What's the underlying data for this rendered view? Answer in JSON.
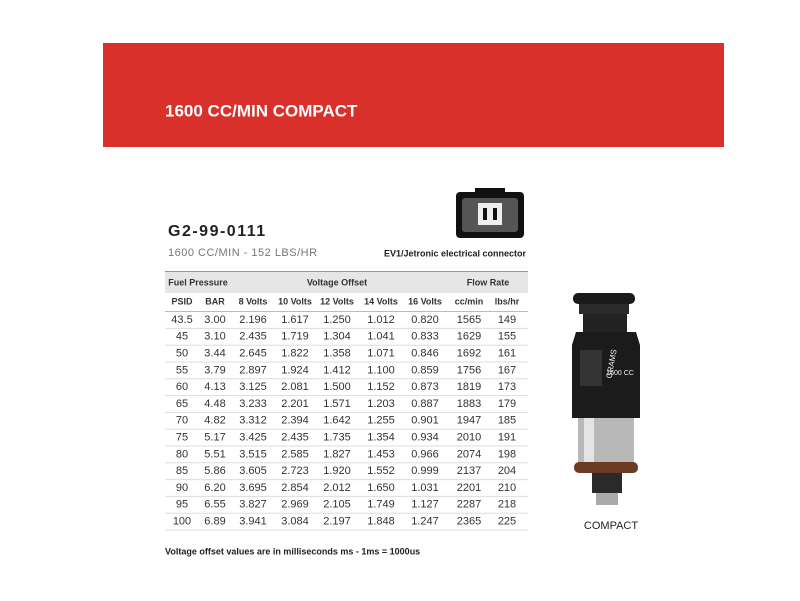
{
  "banner": {
    "title": "1600 CC/MIN COMPACT"
  },
  "product": {
    "part_number": "G2-99-0111",
    "subtitle": "1600 CC/MIN - 152 LBS/HR",
    "connector_label": "EV1/Jetronic electrical connector"
  },
  "table": {
    "groups": [
      "Fuel Pressure",
      "Voltage Offset",
      "Flow Rate"
    ],
    "columns": [
      "PSID",
      "BAR",
      "8 Volts",
      "10 Volts",
      "12 Volts",
      "14 Volts",
      "16 Volts",
      "cc/min",
      "lbs/hr"
    ],
    "rows": [
      [
        "43.5",
        "3.00",
        "2.196",
        "1.617",
        "1.250",
        "1.012",
        "0.820",
        "1565",
        "149"
      ],
      [
        "45",
        "3.10",
        "2.435",
        "1.719",
        "1.304",
        "1.041",
        "0.833",
        "1629",
        "155"
      ],
      [
        "50",
        "3.44",
        "2.645",
        "1.822",
        "1.358",
        "1.071",
        "0.846",
        "1692",
        "161"
      ],
      [
        "55",
        "3.79",
        "2.897",
        "1.924",
        "1.412",
        "1.100",
        "0.859",
        "1756",
        "167"
      ],
      [
        "60",
        "4.13",
        "3.125",
        "2.081",
        "1.500",
        "1.152",
        "0.873",
        "1819",
        "173"
      ],
      [
        "65",
        "4.48",
        "3.233",
        "2.201",
        "1.571",
        "1.203",
        "0.887",
        "1883",
        "179"
      ],
      [
        "70",
        "4.82",
        "3.312",
        "2.394",
        "1.642",
        "1.255",
        "0.901",
        "1947",
        "185"
      ],
      [
        "75",
        "5.17",
        "3.425",
        "2.435",
        "1.735",
        "1.354",
        "0.934",
        "2010",
        "191"
      ],
      [
        "80",
        "5.51",
        "3.515",
        "2.585",
        "1.827",
        "1.453",
        "0.966",
        "2074",
        "198"
      ],
      [
        "85",
        "5.86",
        "3.605",
        "2.723",
        "1.920",
        "1.552",
        "0.999",
        "2137",
        "204"
      ],
      [
        "90",
        "6.20",
        "3.695",
        "2.854",
        "2.012",
        "1.650",
        "1.031",
        "2201",
        "210"
      ],
      [
        "95",
        "6.55",
        "3.827",
        "2.969",
        "2.105",
        "1.749",
        "1.127",
        "2287",
        "218"
      ],
      [
        "100",
        "6.89",
        "3.941",
        "3.084",
        "2.197",
        "1.848",
        "1.247",
        "2365",
        "225"
      ]
    ],
    "footnote": "Voltage offset values are in milliseconds ms - 1ms = 1000us"
  },
  "image": {
    "brand": "GRAMS",
    "rating": "1600 CC",
    "caption": "COMPACT"
  }
}
